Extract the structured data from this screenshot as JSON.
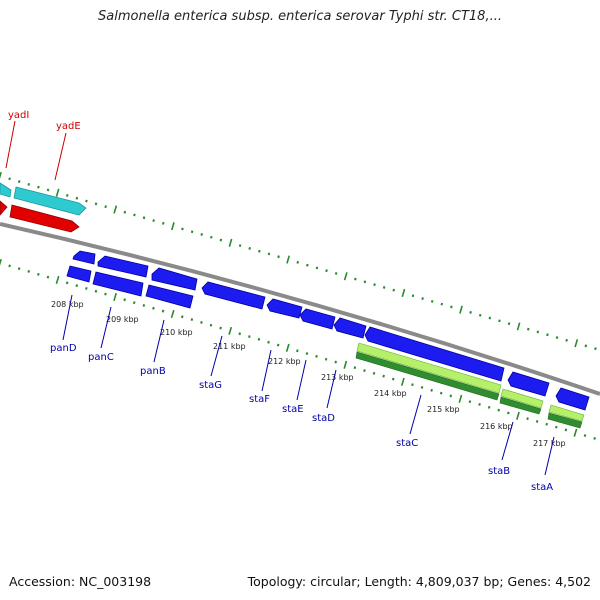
{
  "header": {
    "title": "Salmonella enterica subsp. enterica serovar Typhi str. CT18,..."
  },
  "footer": {
    "accession": "Accession: NC_003198",
    "summary": "Topology: circular; Length: 4,809,037 bp; Genes: 4,502"
  },
  "colors": {
    "backbone": "#8a8a8a",
    "forward_gene": "#2fc9d0",
    "forward_gene_dark": "#e00000",
    "reverse_gene": "#1c1cf0",
    "rna_light": "#b4f06a",
    "rna_dark": "#2f8c2f",
    "ticks": "#2a8a2a",
    "forward_label": "#cc0000",
    "reverse_label": "#0000aa"
  },
  "map": {
    "kbp_ticks": [
      "208 kbp",
      "209 kbp",
      "210 kbp",
      "211 kbp",
      "212 kbp",
      "213 kbp",
      "214 kbp",
      "215 kbp",
      "216 kbp",
      "217 kbp"
    ],
    "forward_genes": [
      "yadI",
      "yadE"
    ],
    "reverse_genes": [
      "panD",
      "panC",
      "panB",
      "staG",
      "staF",
      "staE",
      "staD",
      "staC",
      "staB",
      "staA"
    ]
  }
}
